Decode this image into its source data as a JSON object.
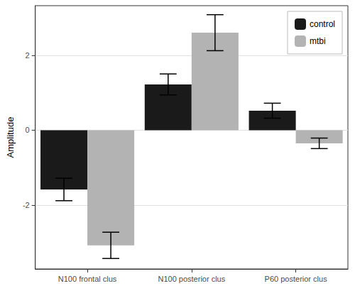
{
  "chart_data": {
    "type": "bar",
    "y_label": "Amplitude",
    "categories": [
      "N100 frontal clus",
      "N100 posterior clus",
      "P60 posterior clus"
    ],
    "series": [
      {
        "name": "control",
        "color": "#1a1a1a",
        "values": [
          -1.58,
          1.22,
          0.52
        ],
        "errors": [
          0.3,
          0.28,
          0.2
        ]
      },
      {
        "name": "mtbi",
        "color": "#b3b3b3",
        "values": [
          -3.07,
          2.6,
          -0.35
        ],
        "errors": [
          0.35,
          0.48,
          0.14
        ]
      }
    ],
    "ylim": [
      -3.7,
      3.32
    ],
    "yticks": [
      -2,
      0,
      2
    ],
    "grid": true,
    "legend": "upper right"
  }
}
